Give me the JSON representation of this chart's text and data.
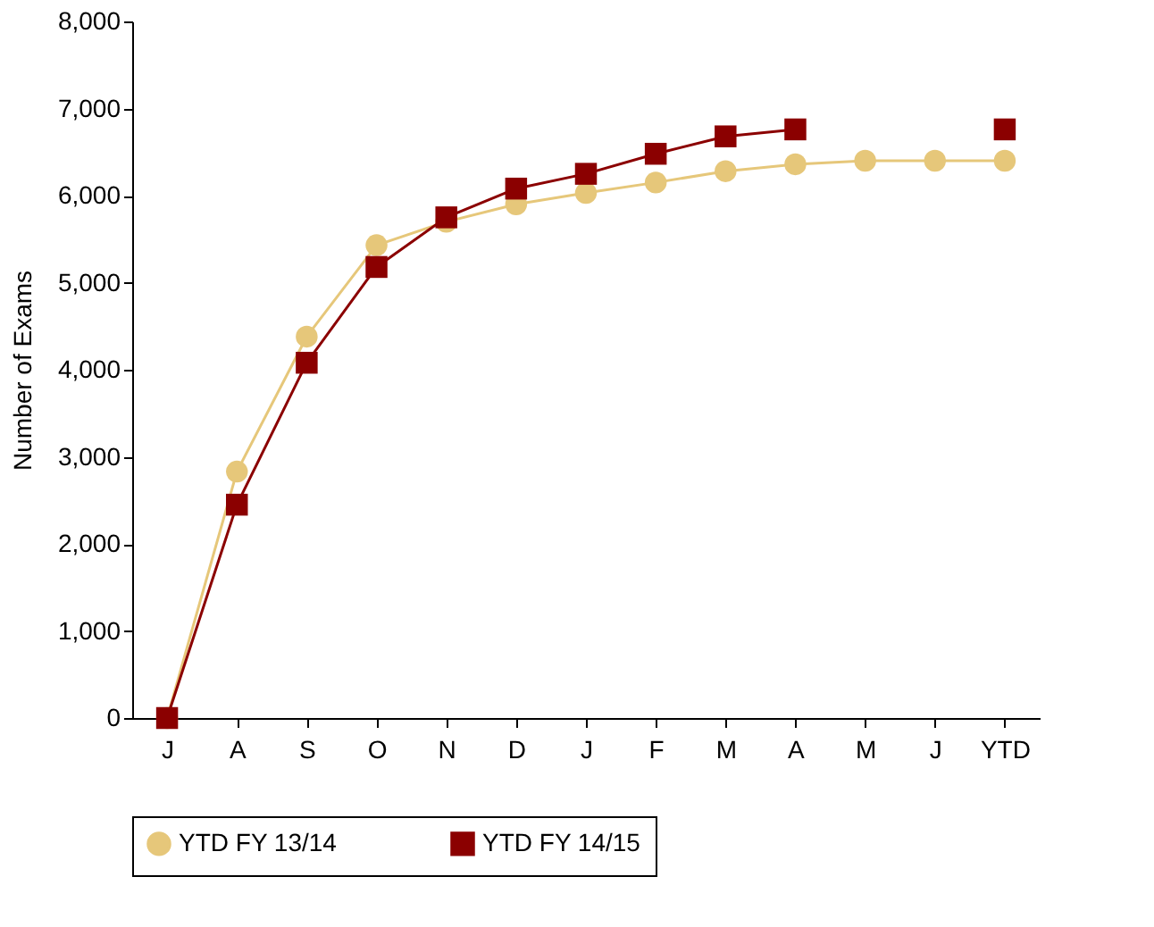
{
  "chart_data": {
    "type": "line",
    "ylabel": "Number of Exams",
    "categories": [
      "J",
      "A",
      "S",
      "O",
      "N",
      "D",
      "J",
      "F",
      "M",
      "A",
      "M",
      "J",
      "YTD"
    ],
    "series": [
      {
        "name": "YTD FY 13/14",
        "color": "#e6c77a",
        "marker": "circle",
        "values": [
          0,
          2830,
          4380,
          5430,
          5700,
          5900,
          6030,
          6150,
          6280,
          6360,
          6400,
          6400,
          6400
        ]
      },
      {
        "name": "YTD FY 14/15",
        "color": "#8b0000",
        "marker": "square",
        "values": [
          0,
          2450,
          4080,
          5180,
          5750,
          6080,
          6250,
          6480,
          6680,
          6760,
          null,
          null,
          6760
        ]
      }
    ],
    "ylim": [
      0,
      8000
    ],
    "yticks": [
      0,
      {
        "value": 1000,
        "label": "1,000"
      },
      {
        "value": 2000,
        "label": "2,000"
      },
      {
        "value": 3000,
        "label": "3,000"
      },
      {
        "value": 4000,
        "label": "4,000"
      },
      {
        "value": 5000,
        "label": "5,000"
      },
      {
        "value": 6000,
        "label": "6,000"
      },
      {
        "value": 7000,
        "label": "7,000"
      },
      {
        "value": 8000,
        "label": "8,000"
      }
    ],
    "grid": false,
    "legend": "bottom"
  }
}
